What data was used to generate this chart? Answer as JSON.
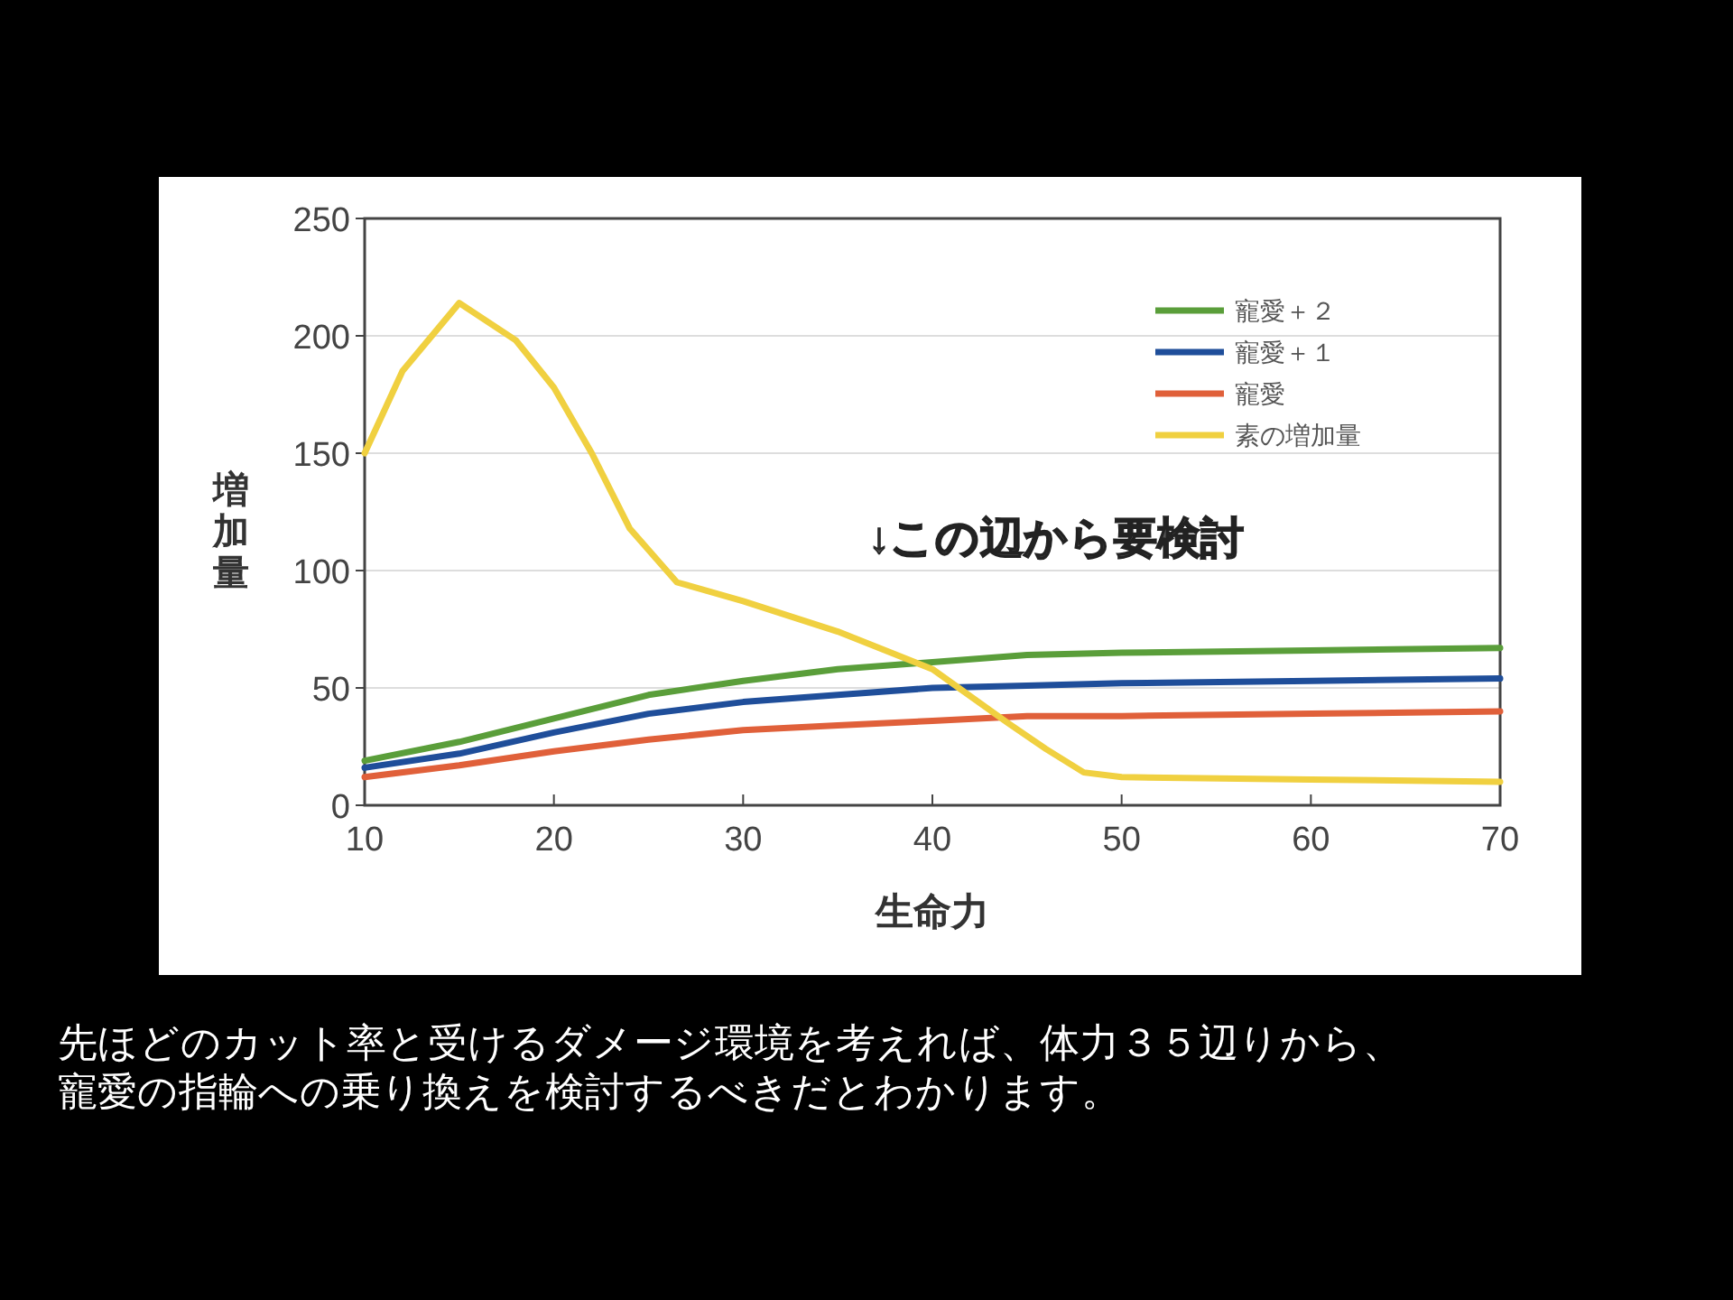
{
  "chart_data": {
    "type": "line",
    "xlabel": "生命力",
    "ylabel": "増加量",
    "xlim": [
      10,
      70
    ],
    "xticks": [
      10,
      20,
      30,
      40,
      50,
      60,
      70
    ],
    "ylim": [
      0,
      250
    ],
    "yticks": [
      0,
      50,
      100,
      150,
      200,
      250
    ],
    "grid": "y",
    "legend": "top right",
    "annotations": [
      "↓この辺から要検討",
      "先ほどのカット率と受けるダメージ環境を考えれば、体力３５辺りから、寵愛の指輪への乗り換えを検討するべきだとわかります。"
    ],
    "series": [
      {
        "name": "寵愛＋２",
        "color": "#5a9e3a",
        "x": [
          10,
          15,
          20,
          25,
          30,
          35,
          40,
          45,
          50,
          60,
          70
        ],
        "values": [
          19,
          27,
          37,
          47,
          53,
          58,
          61,
          64,
          65,
          66,
          67
        ]
      },
      {
        "name": "寵愛＋１",
        "color": "#1f4e9a",
        "x": [
          10,
          15,
          20,
          25,
          30,
          35,
          40,
          45,
          50,
          60,
          70
        ],
        "values": [
          16,
          22,
          31,
          39,
          44,
          47,
          50,
          51,
          52,
          53,
          54
        ]
      },
      {
        "name": "寵愛",
        "color": "#e0603a",
        "x": [
          10,
          15,
          20,
          25,
          30,
          35,
          40,
          45,
          50,
          60,
          70
        ],
        "values": [
          12,
          17,
          23,
          28,
          32,
          34,
          36,
          38,
          38,
          39,
          40
        ]
      },
      {
        "name": "素の増加量",
        "color": "#f0d040",
        "x": [
          10,
          12,
          15,
          18,
          20,
          22,
          24,
          26.5,
          30,
          35,
          40,
          44,
          46,
          48,
          50,
          60,
          70
        ],
        "values": [
          150,
          185,
          214,
          198,
          178,
          150,
          118,
          95,
          87,
          74,
          58,
          35,
          24,
          14,
          12,
          11,
          10
        ]
      }
    ]
  }
}
